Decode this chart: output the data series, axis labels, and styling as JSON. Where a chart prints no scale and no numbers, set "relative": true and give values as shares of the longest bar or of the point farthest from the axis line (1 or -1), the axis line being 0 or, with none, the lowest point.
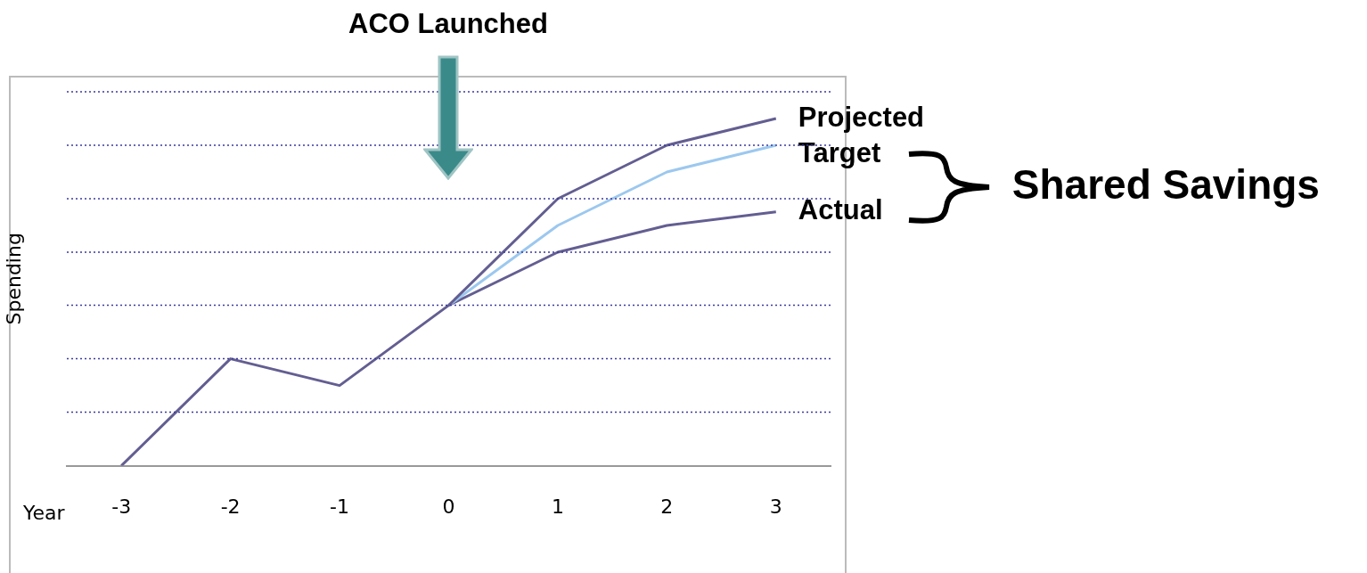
{
  "chart_data": {
    "type": "line",
    "relative": true,
    "xlabel": "Year",
    "ylabel": "Spending",
    "categories": [
      "-3",
      "-2",
      "-1",
      "0",
      "1",
      "2",
      "3"
    ],
    "series": [
      {
        "name": "Projected",
        "color": "#635e91",
        "values": [
          0,
          0.308,
          0.231,
          0.462,
          0.769,
          0.923,
          1
        ]
      },
      {
        "name": "Target",
        "color": "#9cc8ef",
        "values": [
          null,
          null,
          null,
          0.462,
          0.692,
          0.846,
          0.923
        ]
      },
      {
        "name": "Actual",
        "color": "#635e91",
        "values": [
          null,
          null,
          null,
          0.462,
          0.615,
          0.692,
          0.731
        ]
      }
    ],
    "ref_lines": [
      {
        "axis": "y",
        "value": 0.154,
        "color": "#3a3aa0",
        "line_style": "dotted"
      },
      {
        "axis": "y",
        "value": 0.308,
        "color": "#3a3aa0",
        "line_style": "dotted"
      },
      {
        "axis": "y",
        "value": 0.462,
        "color": "#3a3aa0",
        "line_style": "dotted"
      },
      {
        "axis": "y",
        "value": 0.615,
        "color": "#3a3aa0",
        "line_style": "dotted"
      },
      {
        "axis": "y",
        "value": 0.769,
        "color": "#3a3aa0",
        "line_style": "dotted"
      },
      {
        "axis": "y",
        "value": 0.923,
        "color": "#3a3aa0",
        "line_style": "dotted"
      },
      {
        "axis": "y",
        "value": 1.077,
        "color": "#3a3aa0",
        "line_style": "dotted"
      }
    ],
    "marker": "none",
    "line_style": "solid",
    "annotations": [
      "ACO Launched",
      "Shared Savings"
    ]
  }
}
